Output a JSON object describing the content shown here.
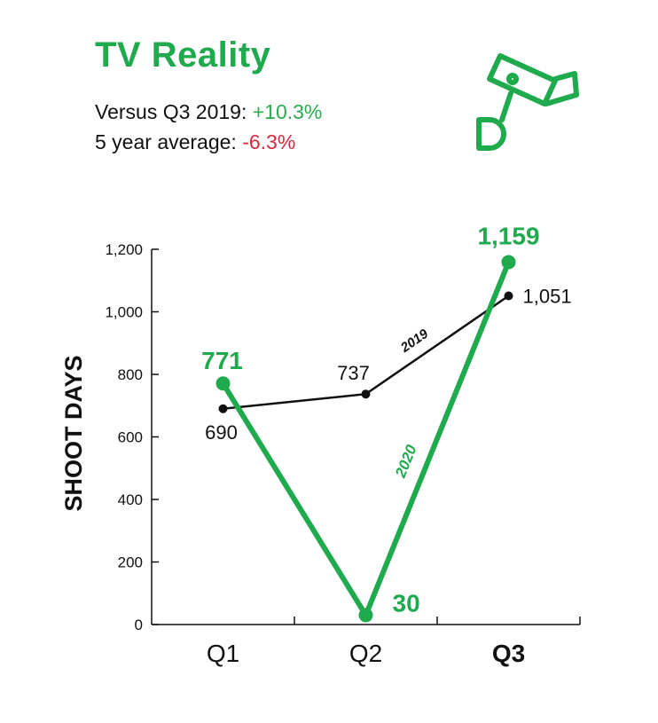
{
  "header": {
    "title": "TV Reality",
    "stat1_label": "Versus Q3 2019:",
    "stat1_value": "+10.3%",
    "stat2_label": "5 year average:",
    "stat2_value": "-6.3%",
    "icon": "security-camera-icon"
  },
  "colors": {
    "green": "#1faa4e",
    "positive": "#2daa4f",
    "negative": "#d6293f",
    "black": "#111111"
  },
  "chart_data": {
    "type": "line",
    "categories": [
      "Q1",
      "Q2",
      "Q3"
    ],
    "bold_categories": [
      "Q3"
    ],
    "ylabel": "SHOOT DAYS",
    "xlabel": "",
    "ylim": [
      0,
      1200
    ],
    "yticks": [
      0,
      200,
      400,
      600,
      800,
      1000,
      1200
    ],
    "ytick_labels": [
      "0",
      "200",
      "400",
      "600",
      "800",
      "1,000",
      "1,200"
    ],
    "grid": false,
    "series": [
      {
        "name": "2019",
        "values": [
          690,
          737,
          1051
        ],
        "labels": [
          "690",
          "737",
          "1,051"
        ],
        "color": "#111111"
      },
      {
        "name": "2020",
        "values": [
          771,
          30,
          1159
        ],
        "labels": [
          "771",
          "30",
          "1,159"
        ],
        "color": "#1faa4e"
      }
    ]
  }
}
